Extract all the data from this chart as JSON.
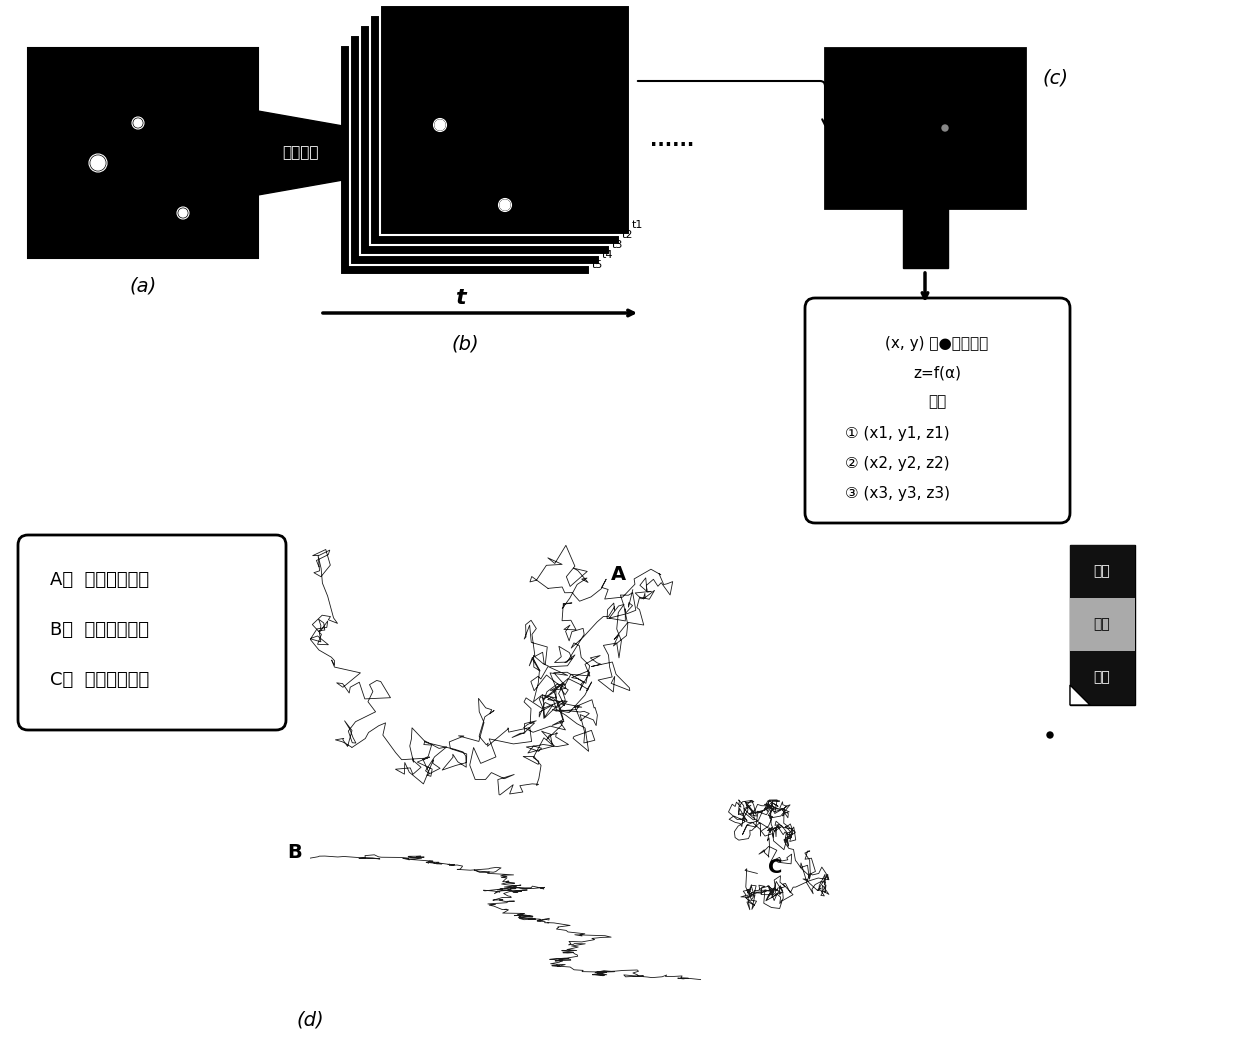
{
  "background_color": "#ffffff",
  "box_text_lines": [
    "(x, y) 主●位置获取",
    "z=f(α)",
    "获得",
    "① (x1, y1, z1)",
    "② (x2, y2, z2)",
    "③ (x3, y3, z3)"
  ],
  "legend_lines": [
    "A：  自由扩散模式",
    "B：  定向传输模式",
    "C：  限制运动模式"
  ],
  "panel_a_label": "(a)",
  "panel_b_label": "(b)",
  "panel_c_label": "(c)",
  "panel_d_label": "(d)",
  "phase_label": "相位调制",
  "t_label": "t",
  "dots_label": "......",
  "right_labels": [
    "坐标",
    "运动",
    "跟踪"
  ]
}
